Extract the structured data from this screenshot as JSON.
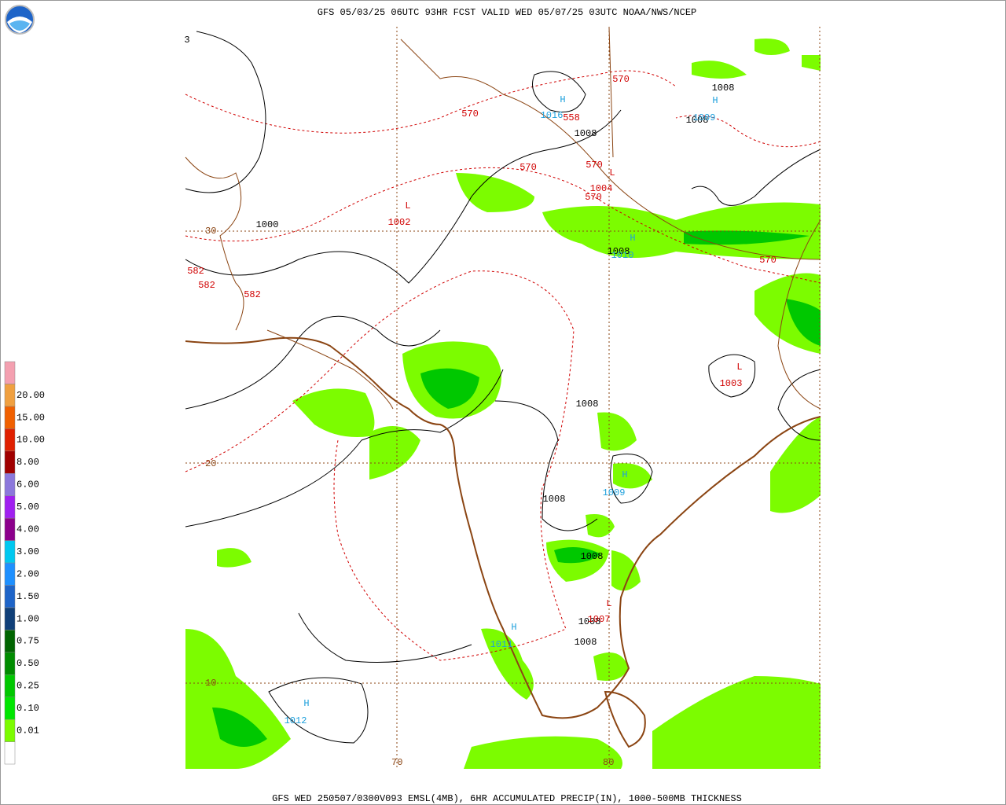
{
  "header": {
    "title": "GFS 05/03/25 06UTC 93HR FCST VALID WED 05/07/25 03UTC NOAA/NWS/NCEP"
  },
  "footer": {
    "caption": "GFS WED 250507/0300V093 EMSL(4MB), 6HR ACCUMULATED PRECIP(IN), 1000-500MB THICKNESS"
  },
  "legend": {
    "items": [
      {
        "label": null,
        "color": "#ffffff"
      },
      {
        "label": "0.01",
        "color": "#7cfc00"
      },
      {
        "label": "0.10",
        "color": "#00e600"
      },
      {
        "label": "0.25",
        "color": "#00c800"
      },
      {
        "label": "0.50",
        "color": "#008c00"
      },
      {
        "label": "0.75",
        "color": "#006400"
      },
      {
        "label": "1.00",
        "color": "#103f78"
      },
      {
        "label": "1.50",
        "color": "#1e64c8"
      },
      {
        "label": "2.00",
        "color": "#1e90ff"
      },
      {
        "label": "3.00",
        "color": "#00c8f0"
      },
      {
        "label": "4.00",
        "color": "#8c008c"
      },
      {
        "label": "5.00",
        "color": "#a020f0"
      },
      {
        "label": "6.00",
        "color": "#8c78dc"
      },
      {
        "label": "8.00",
        "color": "#a00000"
      },
      {
        "label": "10.00",
        "color": "#e02000"
      },
      {
        "label": "15.00",
        "color": "#f06000"
      },
      {
        "label": "20.00",
        "color": "#f0a040"
      },
      {
        "label": null,
        "color": "#f4a0b0"
      }
    ]
  },
  "map": {
    "grid_labels": [
      "30",
      "20",
      "10",
      "70",
      "80"
    ],
    "labels": [
      {
        "text": "570",
        "color": "#d00000"
      },
      {
        "text": "570",
        "color": "#d00000"
      },
      {
        "text": "570",
        "color": "#d00000"
      },
      {
        "text": "570",
        "color": "#d00000"
      },
      {
        "text": "570",
        "color": "#d00000"
      },
      {
        "text": "570",
        "color": "#d00000"
      },
      {
        "text": "582",
        "color": "#d00000"
      },
      {
        "text": "582",
        "color": "#d00000"
      },
      {
        "text": "582",
        "color": "#d00000"
      },
      {
        "text": "558",
        "color": "#d00000"
      },
      {
        "text": "1008",
        "color": "#000000"
      },
      {
        "text": "1008",
        "color": "#000000"
      },
      {
        "text": "1008",
        "color": "#000000"
      },
      {
        "text": "1000",
        "color": "#000000"
      },
      {
        "text": "1008",
        "color": "#000000"
      },
      {
        "text": "1008",
        "color": "#000000"
      },
      {
        "text": "1008",
        "color": "#000000"
      },
      {
        "text": "1008",
        "color": "#000000"
      },
      {
        "text": "1008",
        "color": "#000000"
      },
      {
        "text": "1008",
        "color": "#000000"
      },
      {
        "text": "3",
        "color": "#000000"
      },
      {
        "text": "H",
        "color": "#1ea0dc"
      },
      {
        "text": "1016",
        "color": "#1ea0dc"
      },
      {
        "text": "H",
        "color": "#1ea0dc"
      },
      {
        "text": "1009",
        "color": "#1ea0dc"
      },
      {
        "text": "H",
        "color": "#1ea0dc"
      },
      {
        "text": "1010",
        "color": "#1ea0dc"
      },
      {
        "text": "H",
        "color": "#1ea0dc"
      },
      {
        "text": "1009",
        "color": "#1ea0dc"
      },
      {
        "text": "H",
        "color": "#1ea0dc"
      },
      {
        "text": "1011",
        "color": "#1ea0dc"
      },
      {
        "text": "H",
        "color": "#1ea0dc"
      },
      {
        "text": "1012",
        "color": "#1ea0dc"
      },
      {
        "text": "L",
        "color": "#d00000"
      },
      {
        "text": "1002",
        "color": "#d00000"
      },
      {
        "text": "L",
        "color": "#d00000"
      },
      {
        "text": "1004",
        "color": "#d00000"
      },
      {
        "text": "L",
        "color": "#d00000"
      },
      {
        "text": "1003",
        "color": "#d00000"
      },
      {
        "text": "L",
        "color": "#d00000"
      },
      {
        "text": "1007",
        "color": "#d00000"
      }
    ]
  }
}
